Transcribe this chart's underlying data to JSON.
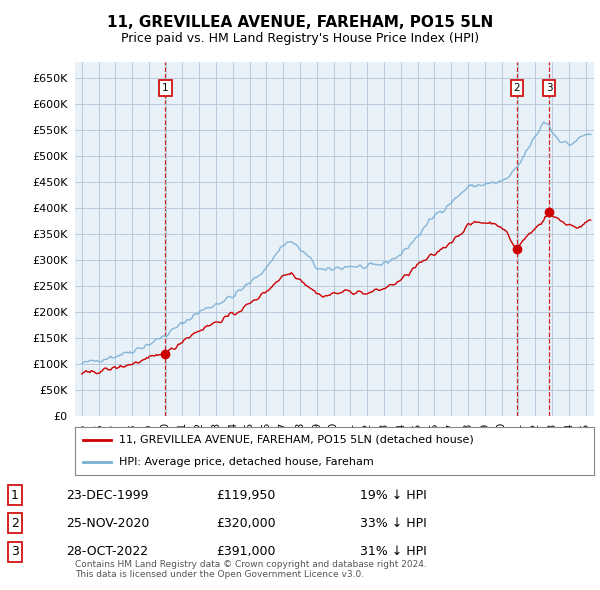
{
  "title": "11, GREVILLEA AVENUE, FAREHAM, PO15 5LN",
  "subtitle": "Price paid vs. HM Land Registry's House Price Index (HPI)",
  "ylim": [
    0,
    680000
  ],
  "yticks": [
    0,
    50000,
    100000,
    150000,
    200000,
    250000,
    300000,
    350000,
    400000,
    450000,
    500000,
    550000,
    600000,
    650000
  ],
  "xlim_start": 1994.6,
  "xlim_end": 2025.5,
  "sale_color": "#cc0000",
  "hpi_color": "#7ab0d4",
  "plot_bg": "#e8f0f8",
  "sale_dates": [
    1999.98,
    2020.9,
    2022.83
  ],
  "sale_prices": [
    119950,
    320000,
    391000
  ],
  "sale_labels": [
    "1",
    "2",
    "3"
  ],
  "legend_sale": "11, GREVILLEA AVENUE, FAREHAM, PO15 5LN (detached house)",
  "legend_hpi": "HPI: Average price, detached house, Fareham",
  "table_rows": [
    [
      "1",
      "23-DEC-1999",
      "£119,950",
      "19% ↓ HPI"
    ],
    [
      "2",
      "25-NOV-2020",
      "£320,000",
      "33% ↓ HPI"
    ],
    [
      "3",
      "28-OCT-2022",
      "£391,000",
      "31% ↓ HPI"
    ]
  ],
  "footnote": "Contains HM Land Registry data © Crown copyright and database right 2024.\nThis data is licensed under the Open Government Licence v3.0.",
  "background_color": "#ffffff",
  "grid_color": "#b0c4d8"
}
